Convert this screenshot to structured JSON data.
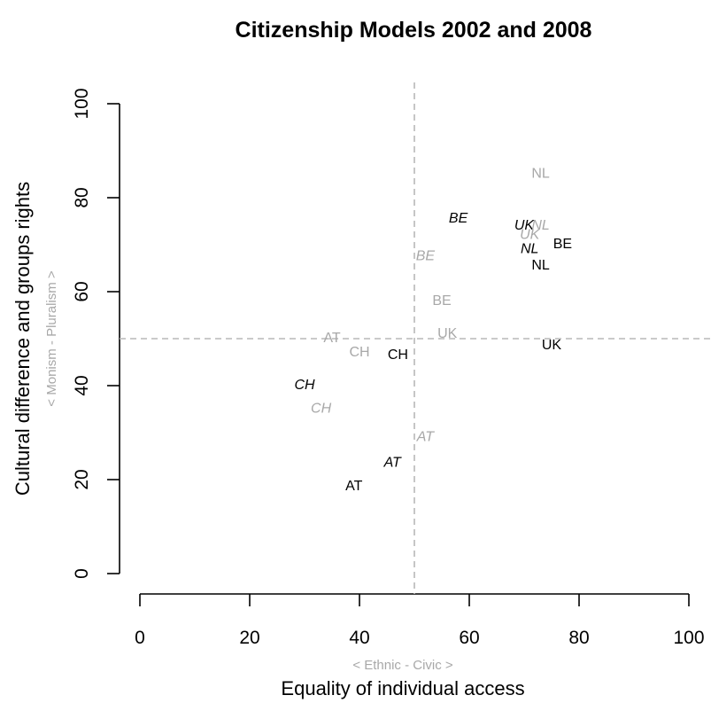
{
  "chart_data": {
    "type": "scatter",
    "title": "Citizenship Models 2002 and 2008",
    "xlabel": "Equality of individual access",
    "xlabel_sub": "< Ethnic - Civic >",
    "ylabel": "Cultural difference and groups rights",
    "ylabel_sub": "< Monism - Pluralism >",
    "xlim": [
      0,
      100
    ],
    "ylim": [
      0,
      100
    ],
    "x_ticks": [
      0,
      20,
      40,
      60,
      80,
      100
    ],
    "y_ticks": [
      0,
      20,
      40,
      60,
      80,
      100
    ],
    "reference_lines": {
      "x": 50,
      "y": 50
    },
    "colors": {
      "black": "#000000",
      "grey": "#a8a8a8"
    },
    "points": [
      {
        "label": "NL",
        "x": 73,
        "y": 85,
        "color": "grey",
        "italic": false
      },
      {
        "label": "BE",
        "x": 58,
        "y": 75.5,
        "color": "black",
        "italic": true
      },
      {
        "label": "UK",
        "x": 70,
        "y": 74,
        "color": "black",
        "italic": true
      },
      {
        "label": "NL",
        "x": 73,
        "y": 74,
        "color": "grey",
        "italic": true
      },
      {
        "label": "UK",
        "x": 71,
        "y": 72,
        "color": "grey",
        "italic": true
      },
      {
        "label": "BE",
        "x": 77,
        "y": 70,
        "color": "black",
        "italic": false
      },
      {
        "label": "NL",
        "x": 71,
        "y": 69,
        "color": "black",
        "italic": true
      },
      {
        "label": "BE",
        "x": 52,
        "y": 67.5,
        "color": "grey",
        "italic": true
      },
      {
        "label": "NL",
        "x": 73,
        "y": 65.5,
        "color": "black",
        "italic": false
      },
      {
        "label": "BE",
        "x": 55,
        "y": 58,
        "color": "grey",
        "italic": false
      },
      {
        "label": "UK",
        "x": 56,
        "y": 51,
        "color": "grey",
        "italic": false
      },
      {
        "label": "AT",
        "x": 35,
        "y": 50,
        "color": "grey",
        "italic": false
      },
      {
        "label": "UK",
        "x": 75,
        "y": 48.5,
        "color": "black",
        "italic": false
      },
      {
        "label": "CH",
        "x": 40,
        "y": 47,
        "color": "grey",
        "italic": false
      },
      {
        "label": "CH",
        "x": 47,
        "y": 46.5,
        "color": "black",
        "italic": false
      },
      {
        "label": "CH",
        "x": 30,
        "y": 40,
        "color": "black",
        "italic": true
      },
      {
        "label": "CH",
        "x": 33,
        "y": 35,
        "color": "grey",
        "italic": true
      },
      {
        "label": "AT",
        "x": 52,
        "y": 29,
        "color": "grey",
        "italic": true
      },
      {
        "label": "AT",
        "x": 46,
        "y": 23.5,
        "color": "black",
        "italic": true
      },
      {
        "label": "AT",
        "x": 39,
        "y": 18.5,
        "color": "black",
        "italic": false
      }
    ]
  }
}
